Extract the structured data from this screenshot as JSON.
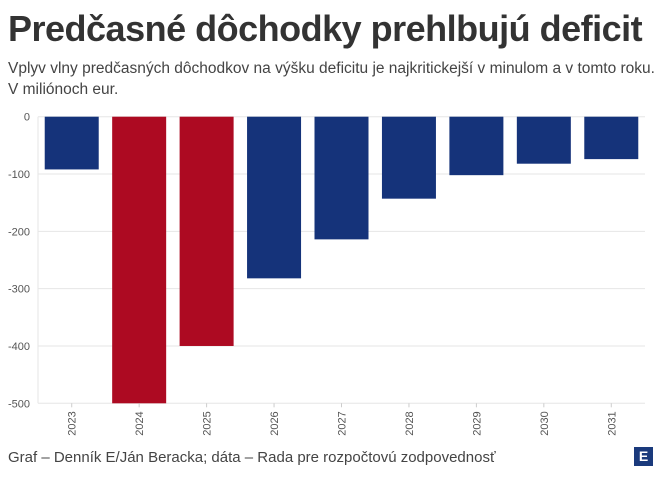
{
  "chart_data": {
    "type": "bar",
    "title": "Predčasné dôchodky prehlbujú deficit",
    "subtitle": "Vplyv vlny predčasných dôchodkov na výšku deficitu je najkritickejší v minulom a v tomto roku. V miliónoch eur.",
    "categories": [
      "2023",
      "2024",
      "2025",
      "2026",
      "2027",
      "2028",
      "2029",
      "2030",
      "2031"
    ],
    "values": [
      -92,
      -500,
      -400,
      -282,
      -214,
      -143,
      -102,
      -82,
      -74
    ],
    "highlight": [
      false,
      true,
      true,
      false,
      false,
      false,
      false,
      false,
      false
    ],
    "colors": {
      "default": "#15337a",
      "highlight": "#ad0a22"
    },
    "ylim": [
      -500,
      0
    ],
    "yticks": [
      0,
      -100,
      -200,
      -300,
      -400,
      -500
    ],
    "ytick_labels": [
      "0",
      "-100",
      "-200",
      "-300",
      "-400",
      "-500"
    ],
    "xlabel": "",
    "ylabel": "",
    "grid": true
  },
  "footer": {
    "source": "Graf – Denník E/Ján Beracka; dáta – Rada pre rozpočtovú zodpovednosť",
    "logo": "E"
  }
}
